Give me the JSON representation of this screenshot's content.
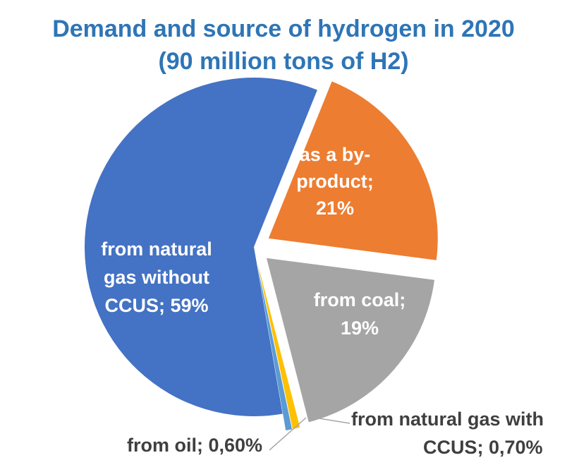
{
  "chart_data": {
    "type": "pie",
    "title_lines": [
      "Demand and source of hydrogen in 2020",
      "(90 million tons of H2)"
    ],
    "slices": [
      {
        "key": "byproduct",
        "label_lines": [
          "as a by-",
          "product;",
          "21%"
        ],
        "value": 21,
        "color": "#ed7d31",
        "label_color": "#ffffff",
        "exploded": true
      },
      {
        "key": "coal",
        "label_lines": [
          "from coal;",
          "19%"
        ],
        "value": 19,
        "color": "#a5a5a5",
        "label_color": "#ffffff",
        "exploded": true
      },
      {
        "key": "gas-ccus",
        "label_lines": [
          "from natural gas with",
          "CCUS; 0,70%"
        ],
        "value": 0.7,
        "color": "#ffc000",
        "label_color": "#3f3f3f",
        "exploded": true
      },
      {
        "key": "oil",
        "label_lines": [
          "from oil; 0,60%"
        ],
        "value": 0.6,
        "color": "#5b9bd5",
        "label_color": "#3f3f3f",
        "exploded": true
      },
      {
        "key": "gas-no-ccus",
        "label_lines": [
          "from natural",
          "gas without",
          "CCUS; 59%"
        ],
        "value": 59,
        "color": "#4472c4",
        "label_color": "#ffffff",
        "exploded": false
      }
    ],
    "title_color": "#2e75b6",
    "legend": "none"
  }
}
